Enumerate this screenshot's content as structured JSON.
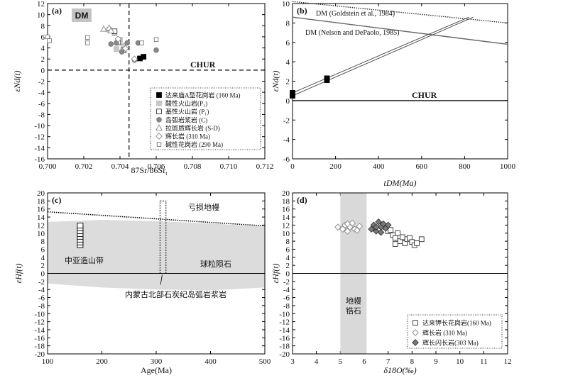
{
  "charts": [
    {
      "id": "a",
      "type": "scatter",
      "panel_label": "(a)",
      "xlabel": "87Sr/86Sr",
      "xlabel_sub": "t",
      "ylabel": "εNd(t)",
      "xlim": [
        0.7,
        0.712
      ],
      "ylim": [
        -16,
        12
      ],
      "xticks": [
        "0.700",
        "0.702",
        "0.704",
        "0.706",
        "0.708",
        "0.710",
        "0.712"
      ],
      "yticks": [
        "-16",
        "-14",
        "-12",
        "-10",
        "-8",
        "-6",
        "-4",
        "-2",
        "0",
        "2",
        "4",
        "6",
        "8",
        "10",
        "12"
      ],
      "dm_label": "DM",
      "chur_label": "CHUR",
      "legend": [
        {
          "label": "达来庙A型花岗岩 (160 Ma)",
          "marker": "square-filled"
        },
        {
          "label": "酸性火山岩(P₁)",
          "marker": "square-lightgray"
        },
        {
          "label": "基性火山岩 (P₁)",
          "marker": "square-open"
        },
        {
          "label": "岛弧岩浆岩 (C)",
          "marker": "circle-gray"
        },
        {
          "label": "拉斑质辉长岩 (S-D)",
          "marker": "triangle-open"
        },
        {
          "label": "辉长岩 (310 Ma)",
          "marker": "diamond-open"
        },
        {
          "label": "碱性花岗岩 (290 Ma)",
          "marker": "square-open-small"
        }
      ],
      "series": [
        {
          "marker": "square-filled",
          "points": [
            [
              0.7051,
              2.1
            ],
            [
              0.7053,
              2.4
            ]
          ]
        },
        {
          "marker": "square-lightgray",
          "points": [
            [
              0.7034,
              7.3
            ],
            [
              0.7037,
              6.6
            ],
            [
              0.704,
              5.5
            ],
            [
              0.7042,
              4.4
            ],
            [
              0.7038,
              3.8
            ]
          ]
        },
        {
          "marker": "square-open",
          "points": [
            [
              0.7037,
              7.0
            ],
            [
              0.7039,
              5.0
            ],
            [
              0.7042,
              3.6
            ]
          ]
        },
        {
          "marker": "circle-gray",
          "points": [
            [
              0.7035,
              4.7
            ],
            [
              0.7038,
              4.9
            ],
            [
              0.7041,
              3.3
            ],
            [
              0.7044,
              4.9
            ],
            [
              0.705,
              4.9
            ],
            [
              0.706,
              3.6
            ],
            [
              0.7048,
              1.8
            ]
          ]
        },
        {
          "marker": "triangle-open",
          "points": [
            [
              0.7031,
              7.4
            ],
            [
              0.7034,
              7.6
            ],
            [
              0.7035,
              7.1
            ]
          ]
        },
        {
          "marker": "diamond-open",
          "points": [
            [
              0.7039,
              5.6
            ],
            [
              0.7043,
              3.9
            ],
            [
              0.7048,
              2.0
            ]
          ]
        },
        {
          "marker": "square-open-small",
          "points": [
            [
              0.7,
              6.0
            ],
            [
              0.7001,
              5.3
            ],
            [
              0.7022,
              5.9
            ],
            [
              0.7022,
              4.9
            ],
            [
              0.7052,
              4.9
            ],
            [
              0.706,
              5.5
            ]
          ]
        }
      ]
    },
    {
      "id": "b",
      "type": "line",
      "panel_label": "(b)",
      "xlabel": "tDM(Ma)",
      "ylabel": "εNd(t)",
      "xlim": [
        0,
        1000
      ],
      "ylim": [
        -6,
        10
      ],
      "xticks": [
        "0",
        "200",
        "400",
        "600",
        "800",
        "1000"
      ],
      "yticks": [
        "-6",
        "-4",
        "-2",
        "0",
        "2",
        "4",
        "6",
        "8",
        "10"
      ],
      "chur_label": "CHUR",
      "dm_goldstein_label": "DM (Goldstein et al., 1984)",
      "dm_nelson_label": "DM (Nelson and DePaolo, 1985)",
      "dm_goldstein": [
        [
          0,
          10.2
        ],
        [
          1000,
          8.0
        ]
      ],
      "dm_nelson": [
        [
          0,
          8.6
        ],
        [
          1000,
          5.8
        ]
      ],
      "evolution_lines": [
        [
          [
            0,
            0.5
          ],
          [
            840,
            8.6
          ]
        ],
        [
          [
            0,
            0.8
          ],
          [
            820,
            8.6
          ]
        ]
      ],
      "points": [
        [
          0,
          0.5
        ],
        [
          0,
          0.8
        ],
        [
          160,
          2.1
        ],
        [
          160,
          2.3
        ]
      ]
    },
    {
      "id": "c",
      "type": "area",
      "panel_label": "(c)",
      "xlabel": "Age(Ma)",
      "ylabel": "εHf(t)",
      "xlim": [
        100,
        500
      ],
      "ylim": [
        -20,
        20
      ],
      "xticks": [
        "100",
        "200",
        "300",
        "400",
        "500"
      ],
      "yticks": [
        "-20",
        "-18",
        "-16",
        "-14",
        "-12",
        "-10",
        "-8",
        "-6",
        "-4",
        "-2",
        "0",
        "2",
        "4",
        "6",
        "8",
        "10",
        "12",
        "14",
        "16",
        "18",
        "20"
      ],
      "depleted_mantle_label": "亏损地幔",
      "chondrite_label": "球粒陨石",
      "caob_label": "中亚造山带",
      "inner_mongolia_label": "内蒙古北部石炭纪岛弧岩浆岩",
      "dm_line": [
        [
          100,
          15.3
        ],
        [
          500,
          11.8
        ]
      ],
      "band_upper": [
        [
          100,
          12.8
        ],
        [
          200,
          13.3
        ],
        [
          300,
          13.0
        ],
        [
          400,
          12.4
        ],
        [
          500,
          11.6
        ]
      ],
      "band_lower": [
        [
          100,
          -2.5
        ],
        [
          200,
          -3.5
        ],
        [
          300,
          -4.0
        ],
        [
          400,
          -4.2
        ],
        [
          500,
          -3.5
        ]
      ],
      "samples_160ma": [
        7.0,
        7.7,
        8.4,
        9.1,
        9.8,
        10.5,
        11.2,
        11.9
      ],
      "box": {
        "x": [
          307,
          318
        ],
        "y": [
          0,
          18
        ]
      }
    },
    {
      "id": "d",
      "type": "scatter",
      "panel_label": "(d)",
      "xlabel": "δ18O(‰)",
      "ylabel": "εHf(t)",
      "xlim": [
        3,
        12
      ],
      "ylim": [
        -20,
        20
      ],
      "xticks": [
        "3",
        "4",
        "5",
        "6",
        "7",
        "8",
        "9",
        "10",
        "11",
        "12"
      ],
      "yticks": [
        "-20",
        "-18",
        "-16",
        "-14",
        "-12",
        "-10",
        "-8",
        "-6",
        "-4",
        "-2",
        "0",
        "2",
        "4",
        "6",
        "8",
        "10",
        "12",
        "14",
        "16",
        "18",
        "20"
      ],
      "mantle_zircon_label": "地幔锆石",
      "mantle_zircon_range": [
        5.0,
        6.1
      ],
      "legend": [
        {
          "label": "达来钾长花岗岩(160 Ma)",
          "marker": "square-open"
        },
        {
          "label": "辉长岩 (310 Ma)",
          "marker": "diamond-open"
        },
        {
          "label": "辉长闪长岩(303 Ma)",
          "marker": "diamond-gray"
        }
      ],
      "series": [
        {
          "marker": "square-open",
          "points": [
            [
              6.9,
              11.5
            ],
            [
              7.0,
              10.5
            ],
            [
              7.2,
              9.5
            ],
            [
              7.3,
              8.8
            ],
            [
              7.4,
              10.0
            ],
            [
              7.5,
              8.0
            ],
            [
              7.6,
              9.0
            ],
            [
              7.7,
              7.5
            ],
            [
              7.8,
              8.5
            ],
            [
              7.9,
              8.8
            ],
            [
              8.0,
              7.8
            ],
            [
              8.1,
              7.0
            ],
            [
              8.2,
              7.5
            ],
            [
              8.4,
              8.5
            ],
            [
              7.1,
              10.8
            ],
            [
              7.3,
              7.3
            ]
          ]
        },
        {
          "marker": "diamond-open",
          "points": [
            [
              4.9,
              11.5
            ],
            [
              5.1,
              11.0
            ],
            [
              5.2,
              12.0
            ],
            [
              5.3,
              10.5
            ],
            [
              5.4,
              11.5
            ],
            [
              5.5,
              12.5
            ],
            [
              5.6,
              11.0
            ],
            [
              5.7,
              10.7
            ],
            [
              5.8,
              11.7
            ],
            [
              5.3,
              12.3
            ]
          ]
        },
        {
          "marker": "diamond-gray",
          "points": [
            [
              6.3,
              11.0
            ],
            [
              6.4,
              12.0
            ],
            [
              6.5,
              10.5
            ],
            [
              6.6,
              12.8
            ],
            [
              6.7,
              11.5
            ],
            [
              6.8,
              12.3
            ],
            [
              6.9,
              11.2
            ],
            [
              7.0,
              12.0
            ],
            [
              6.5,
              11.5
            ],
            [
              6.7,
              10.2
            ]
          ]
        }
      ]
    }
  ]
}
